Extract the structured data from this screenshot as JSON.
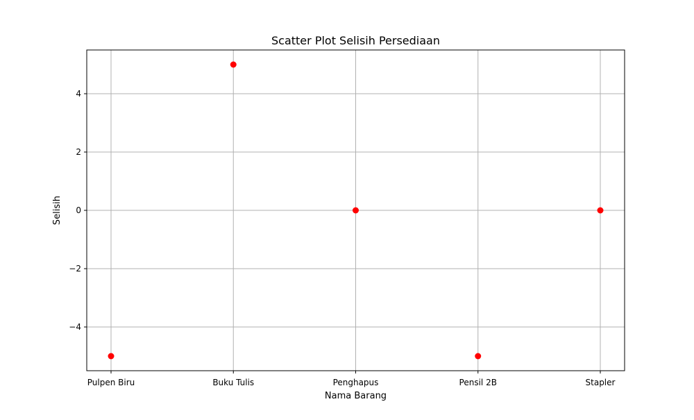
{
  "chart_data": {
    "type": "scatter",
    "title": "Scatter Plot Selisih Persediaan",
    "xlabel": "Nama Barang",
    "ylabel": "Selisih",
    "categories": [
      "Pulpen Biru",
      "Buku Tulis",
      "Penghapus",
      "Pensil 2B",
      "Stapler"
    ],
    "series": [
      {
        "values": [
          -5,
          5,
          0,
          -5,
          0
        ],
        "color": "#ff0000"
      }
    ],
    "ylim": [
      -5.5,
      5.5
    ],
    "yticks": [
      -4,
      -2,
      0,
      2,
      4
    ],
    "ytick_labels": [
      "−4",
      "−2",
      "0",
      "2",
      "4"
    ],
    "grid": true,
    "grid_color": "#b0b0b0"
  }
}
